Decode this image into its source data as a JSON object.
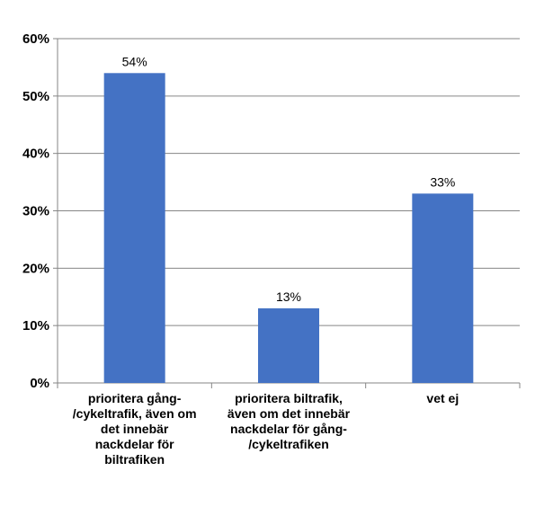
{
  "chart_data": {
    "type": "bar",
    "categories": [
      [
        "prioritera gång-",
        "/cykeltrafik, även om",
        "det innebär",
        "nackdelar för",
        "biltrafiken"
      ],
      [
        "prioritera biltrafik,",
        "även om det innebär",
        "nackdelar för gång-",
        "/cykeltrafiken"
      ],
      [
        "vet ej"
      ]
    ],
    "values": [
      54,
      13,
      33
    ],
    "data_labels": [
      "54%",
      "13%",
      "33%"
    ],
    "title": "",
    "xlabel": "",
    "ylabel": "",
    "ylim": [
      0,
      60
    ],
    "yticks": [
      "0%",
      "10%",
      "20%",
      "30%",
      "40%",
      "50%",
      "60%"
    ],
    "grid": true,
    "legend": "none",
    "colors": {
      "bar": "#4472C4",
      "grid": "#868686",
      "axis": "#868686"
    }
  }
}
